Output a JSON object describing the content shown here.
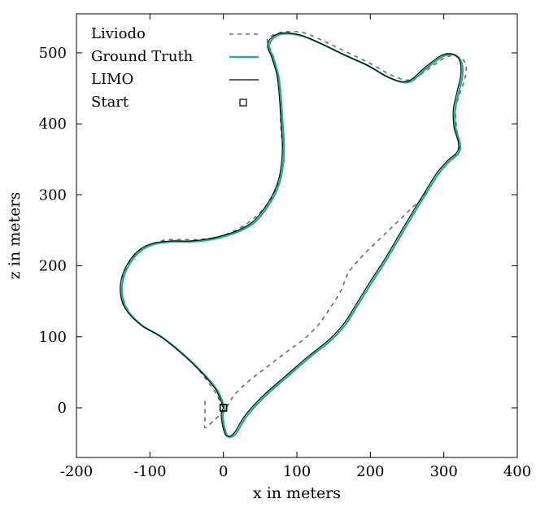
{
  "chart_data": {
    "type": "line",
    "title": "",
    "xlabel": "x in meters",
    "ylabel": "z in meters",
    "xlim": [
      -200,
      400
    ],
    "ylim": [
      -70,
      555
    ],
    "xticks": [
      -200,
      -100,
      0,
      100,
      200,
      300,
      400
    ],
    "yticks": [
      0,
      100,
      200,
      300,
      400,
      500
    ],
    "xtick_labels": [
      "-200",
      "-100",
      "0",
      "100",
      "200",
      "300",
      "400"
    ],
    "ytick_labels": [
      "0",
      "100",
      "200",
      "300",
      "400",
      "500"
    ],
    "grid": false,
    "legend_position": "top-left",
    "series": [
      {
        "name": "Liviodo",
        "style": "dashed",
        "color": "#6b6b6b",
        "points": [
          [
            0,
            0
          ],
          [
            -5,
            10
          ],
          [
            -10,
            20
          ],
          [
            -20,
            35
          ],
          [
            -35,
            55
          ],
          [
            -55,
            75
          ],
          [
            -85,
            100
          ],
          [
            -110,
            115
          ],
          [
            -125,
            130
          ],
          [
            -135,
            150
          ],
          [
            -138,
            170
          ],
          [
            -133,
            195
          ],
          [
            -115,
            220
          ],
          [
            -85,
            235
          ],
          [
            -60,
            237
          ],
          [
            -35,
            237
          ],
          [
            -10,
            240
          ],
          [
            10,
            247
          ],
          [
            30,
            258
          ],
          [
            50,
            275
          ],
          [
            65,
            295
          ],
          [
            75,
            318
          ],
          [
            81,
            340
          ],
          [
            83,
            355
          ],
          [
            80,
            375
          ],
          [
            78,
            400
          ],
          [
            78,
            430
          ],
          [
            76,
            455
          ],
          [
            73,
            475
          ],
          [
            68,
            495
          ],
          [
            62,
            510
          ],
          [
            60,
            520
          ],
          [
            70,
            526
          ],
          [
            85,
            530
          ],
          [
            110,
            528
          ],
          [
            140,
            515
          ],
          [
            170,
            500
          ],
          [
            200,
            485
          ],
          [
            230,
            468
          ],
          [
            255,
            462
          ],
          [
            280,
            478
          ],
          [
            305,
            495
          ],
          [
            322,
            493
          ],
          [
            330,
            483
          ],
          [
            329,
            465
          ],
          [
            321,
            440
          ],
          [
            316,
            420
          ],
          [
            318,
            390
          ],
          [
            322,
            370
          ],
          [
            312,
            352
          ],
          [
            295,
            332
          ],
          [
            282,
            312
          ],
          [
            270,
            295
          ],
          [
            255,
            280
          ],
          [
            240,
            265
          ],
          [
            225,
            250
          ],
          [
            210,
            235
          ],
          [
            190,
            215
          ],
          [
            170,
            190
          ],
          [
            160,
            165
          ],
          [
            145,
            140
          ],
          [
            130,
            118
          ],
          [
            110,
            97
          ],
          [
            85,
            78
          ],
          [
            60,
            58
          ],
          [
            35,
            38
          ],
          [
            15,
            18
          ],
          [
            5,
            2
          ],
          [
            -5,
            -10
          ],
          [
            -15,
            -20
          ],
          [
            -25,
            -28
          ],
          [
            -25,
            -15
          ],
          [
            -25,
            0
          ],
          [
            -25,
            15
          ]
        ]
      },
      {
        "name": "Ground Truth",
        "style": "solid",
        "color": "#1db27a",
        "points": [
          [
            0,
            0
          ],
          [
            -10,
            25
          ],
          [
            -30,
            50
          ],
          [
            -55,
            75
          ],
          [
            -85,
            100
          ],
          [
            -110,
            115
          ],
          [
            -128,
            132
          ],
          [
            -138,
            150
          ],
          [
            -140,
            175
          ],
          [
            -132,
            200
          ],
          [
            -115,
            222
          ],
          [
            -95,
            232
          ],
          [
            -70,
            235
          ],
          [
            -45,
            235
          ],
          [
            -20,
            238
          ],
          [
            0,
            243
          ],
          [
            20,
            250
          ],
          [
            40,
            262
          ],
          [
            55,
            280
          ],
          [
            67,
            300
          ],
          [
            76,
            325
          ],
          [
            80,
            355
          ],
          [
            80,
            380
          ],
          [
            78,
            410
          ],
          [
            76,
            440
          ],
          [
            73,
            468
          ],
          [
            66,
            493
          ],
          [
            60,
            510
          ],
          [
            66,
            522
          ],
          [
            80,
            528
          ],
          [
            105,
            525
          ],
          [
            135,
            512
          ],
          [
            165,
            497
          ],
          [
            195,
            483
          ],
          [
            220,
            468
          ],
          [
            240,
            460
          ],
          [
            255,
            462
          ],
          [
            275,
            480
          ],
          [
            298,
            497
          ],
          [
            313,
            498
          ],
          [
            322,
            488
          ],
          [
            323,
            468
          ],
          [
            318,
            445
          ],
          [
            313,
            420
          ],
          [
            314,
            395
          ],
          [
            320,
            373
          ],
          [
            318,
            360
          ],
          [
            305,
            348
          ],
          [
            290,
            330
          ],
          [
            275,
            305
          ],
          [
            260,
            280
          ],
          [
            240,
            245
          ],
          [
            220,
            210
          ],
          [
            200,
            178
          ],
          [
            182,
            148
          ],
          [
            165,
            120
          ],
          [
            145,
            97
          ],
          [
            115,
            72
          ],
          [
            85,
            45
          ],
          [
            55,
            18
          ],
          [
            30,
            -10
          ],
          [
            15,
            -35
          ],
          [
            5,
            -40
          ],
          [
            0,
            -30
          ],
          [
            -3,
            -10
          ],
          [
            0,
            0
          ]
        ]
      },
      {
        "name": "LIMO",
        "style": "solid",
        "color": "#000000",
        "points": [
          [
            0,
            0
          ],
          [
            -10,
            25
          ],
          [
            -30,
            50
          ],
          [
            -55,
            75
          ],
          [
            -85,
            100
          ],
          [
            -110,
            115
          ],
          [
            -128,
            132
          ],
          [
            -138,
            150
          ],
          [
            -140,
            175
          ],
          [
            -132,
            200
          ],
          [
            -115,
            222
          ],
          [
            -95,
            232
          ],
          [
            -70,
            235
          ],
          [
            -45,
            235
          ],
          [
            -20,
            238
          ],
          [
            0,
            243
          ],
          [
            20,
            250
          ],
          [
            40,
            262
          ],
          [
            55,
            280
          ],
          [
            67,
            300
          ],
          [
            76,
            325
          ],
          [
            80,
            355
          ],
          [
            80,
            380
          ],
          [
            78,
            410
          ],
          [
            76,
            440
          ],
          [
            73,
            468
          ],
          [
            66,
            493
          ],
          [
            60,
            510
          ],
          [
            66,
            522
          ],
          [
            80,
            528
          ],
          [
            105,
            525
          ],
          [
            135,
            512
          ],
          [
            165,
            497
          ],
          [
            195,
            483
          ],
          [
            220,
            468
          ],
          [
            240,
            460
          ],
          [
            255,
            462
          ],
          [
            275,
            480
          ],
          [
            298,
            497
          ],
          [
            313,
            498
          ],
          [
            322,
            488
          ],
          [
            323,
            468
          ],
          [
            318,
            445
          ],
          [
            313,
            420
          ],
          [
            314,
            395
          ],
          [
            320,
            373
          ],
          [
            318,
            360
          ],
          [
            305,
            348
          ],
          [
            290,
            330
          ],
          [
            275,
            305
          ],
          [
            260,
            280
          ],
          [
            240,
            245
          ],
          [
            220,
            210
          ],
          [
            200,
            178
          ],
          [
            182,
            148
          ],
          [
            165,
            120
          ],
          [
            145,
            97
          ],
          [
            115,
            72
          ],
          [
            85,
            45
          ],
          [
            55,
            18
          ],
          [
            30,
            -10
          ],
          [
            15,
            -35
          ],
          [
            5,
            -40
          ],
          [
            0,
            -30
          ],
          [
            -3,
            -10
          ],
          [
            0,
            0
          ]
        ]
      },
      {
        "name": "Start",
        "style": "marker-square",
        "color": "#000000",
        "points": [
          [
            0,
            0
          ]
        ]
      }
    ]
  }
}
